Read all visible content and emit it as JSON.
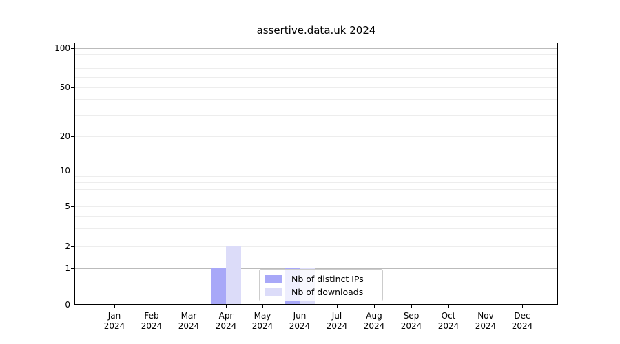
{
  "chart_data": {
    "type": "bar",
    "title": "assertive.data.uk 2024",
    "categories": [
      "Jan",
      "Feb",
      "Mar",
      "Apr",
      "May",
      "Jun",
      "Jul",
      "Aug",
      "Sep",
      "Oct",
      "Nov",
      "Dec"
    ],
    "year": "2024",
    "series": [
      {
        "name": "Nb of distinct IPs",
        "color": "#a8a8f8",
        "values": [
          0,
          0,
          0,
          1,
          0,
          1,
          0,
          0,
          0,
          0,
          0,
          0
        ]
      },
      {
        "name": "Nb of downloads",
        "color": "#dcdcf9",
        "values": [
          0,
          0,
          0,
          2,
          0,
          1,
          0,
          0,
          0,
          0,
          0,
          0
        ]
      }
    ],
    "y_ticks": [
      0,
      1,
      2,
      5,
      10,
      20,
      50,
      100
    ],
    "y_minor_gridlines": [
      3,
      4,
      6,
      7,
      8,
      9,
      30,
      40,
      60,
      70,
      80,
      90
    ],
    "ylim": [
      0,
      100
    ],
    "xlabel": "",
    "ylabel": "",
    "grid": "on",
    "legend": {
      "position": "inside-bottom-center",
      "entries": [
        "Nb of distinct IPs",
        "Nb of downloads"
      ]
    }
  }
}
